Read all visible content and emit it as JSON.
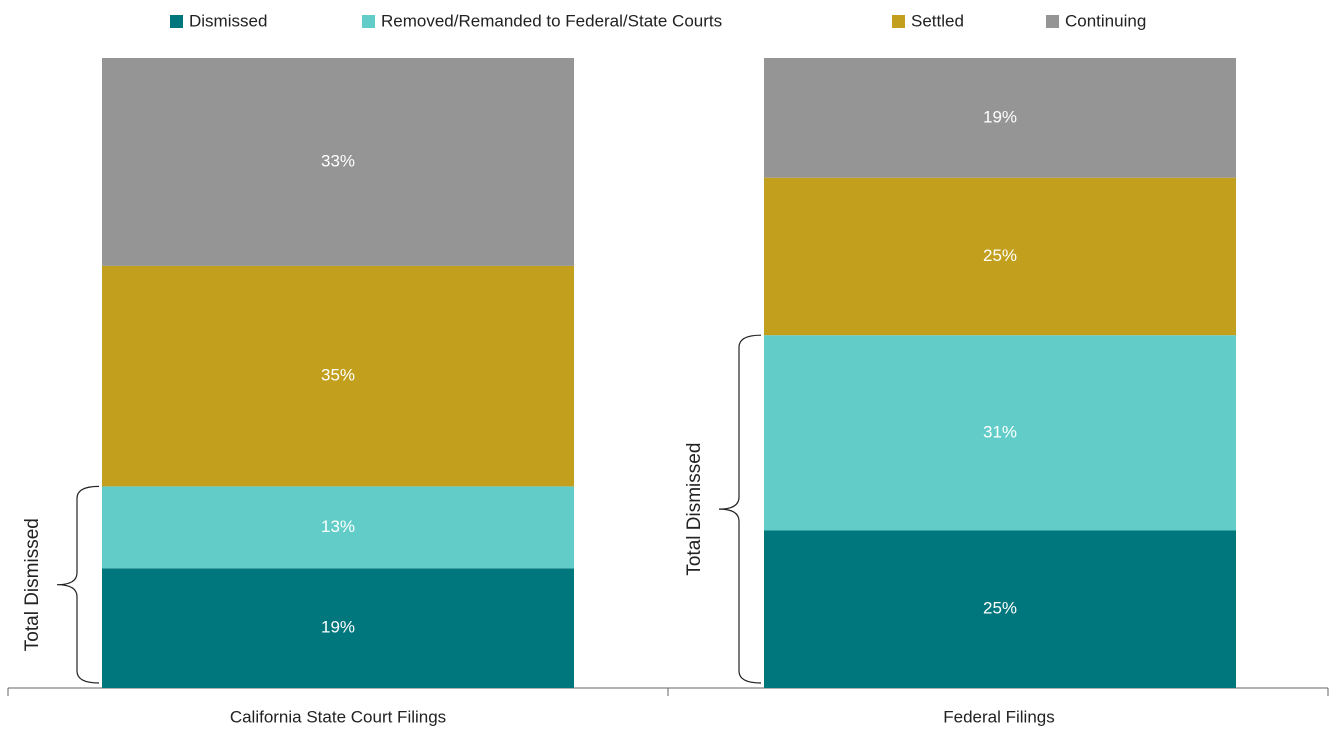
{
  "chart_data": {
    "type": "stacked_bar",
    "categories": [
      "California State Court Filings",
      "Federal Filings"
    ],
    "series": [
      {
        "name": "Dismissed",
        "color": "#00767d",
        "values": [
          19,
          25
        ],
        "value_labels": [
          "19%",
          "25%"
        ]
      },
      {
        "name": "Removed/Remanded to Federal/State Courts",
        "color": "#62cdc8",
        "values": [
          13,
          31
        ],
        "value_labels": [
          "13%",
          "31%"
        ]
      },
      {
        "name": "Settled",
        "color": "#c2a01e",
        "values": [
          35,
          25
        ],
        "value_labels": [
          "35%",
          "25%"
        ]
      },
      {
        "name": "Continuing",
        "color": "#959595",
        "values": [
          33,
          19
        ],
        "value_labels": [
          "33%",
          "19%"
        ]
      }
    ],
    "annotations": [
      "Total Dismissed",
      "Total Dismissed"
    ],
    "ylim": [
      0,
      100
    ],
    "legend": "top"
  }
}
